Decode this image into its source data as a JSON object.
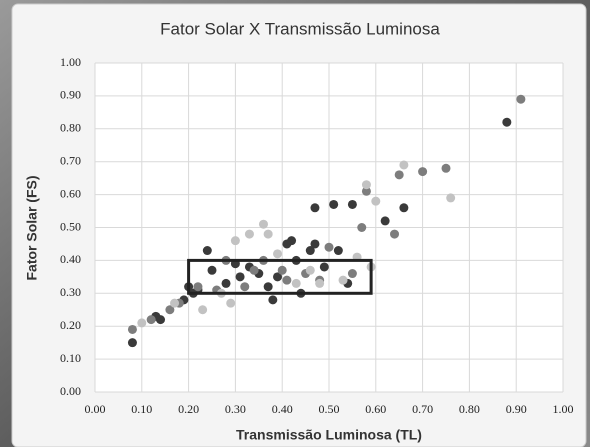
{
  "chart_data": {
    "type": "scatter",
    "title": "Fator Solar X Transmissão Luminosa",
    "x_label": "Transmissão Luminosa (TL)",
    "y_label": "Fator Solar (FS)",
    "xlim": [
      0,
      1
    ],
    "ylim": [
      0,
      1
    ],
    "xticks": [
      {
        "value": 0,
        "label": "0.00"
      },
      {
        "value": 0.1,
        "label": "0.10"
      },
      {
        "value": 0.2,
        "label": "0.20"
      },
      {
        "value": 0.3,
        "label": "0.30"
      },
      {
        "value": 0.4,
        "label": "0.40"
      },
      {
        "value": 0.5,
        "label": "0.50"
      },
      {
        "value": 0.6,
        "label": "0.60"
      },
      {
        "value": 0.7,
        "label": "0.70"
      },
      {
        "value": 0.8,
        "label": "0.80"
      },
      {
        "value": 0.9,
        "label": "0.90"
      },
      {
        "value": 1,
        "label": "1.00"
      }
    ],
    "yticks": [
      {
        "value": 0,
        "label": "0.00"
      },
      {
        "value": 0.1,
        "label": "0.10"
      },
      {
        "value": 0.2,
        "label": "0.20"
      },
      {
        "value": 0.3,
        "label": "0.30"
      },
      {
        "value": 0.4,
        "label": "0.40"
      },
      {
        "value": 0.5,
        "label": "0.50"
      },
      {
        "value": 0.6,
        "label": "0.60"
      },
      {
        "value": 0.7,
        "label": "0.70"
      },
      {
        "value": 0.8,
        "label": "0.80"
      },
      {
        "value": 0.9,
        "label": "0.90"
      },
      {
        "value": 1,
        "label": "1.00"
      }
    ],
    "grid": true,
    "highlight": {
      "x": [
        0.2,
        0.59
      ],
      "y": [
        0.3,
        0.4
      ]
    },
    "series": [
      {
        "color": "#3a3a3a",
        "x": [
          0.08,
          0.13,
          0.14,
          0.19,
          0.2,
          0.21,
          0.22,
          0.24,
          0.25,
          0.28,
          0.3,
          0.31,
          0.33,
          0.35,
          0.37,
          0.38,
          0.39,
          0.41,
          0.42,
          0.43,
          0.44,
          0.46,
          0.47,
          0.47,
          0.49,
          0.51,
          0.52,
          0.54,
          0.55,
          0.62,
          0.66,
          0.88
        ],
        "values": [
          0.15,
          0.23,
          0.22,
          0.28,
          0.32,
          0.3,
          0.31,
          0.43,
          0.37,
          0.33,
          0.39,
          0.35,
          0.38,
          0.36,
          0.32,
          0.28,
          0.35,
          0.45,
          0.46,
          0.4,
          0.3,
          0.43,
          0.45,
          0.56,
          0.38,
          0.57,
          0.43,
          0.33,
          0.57,
          0.52,
          0.56,
          0.82
        ]
      },
      {
        "color": "#7d7d7d",
        "x": [
          0.08,
          0.12,
          0.16,
          0.18,
          0.22,
          0.26,
          0.28,
          0.32,
          0.34,
          0.36,
          0.4,
          0.41,
          0.45,
          0.48,
          0.5,
          0.55,
          0.57,
          0.58,
          0.65,
          0.7,
          0.75,
          0.91,
          0.64
        ],
        "values": [
          0.19,
          0.22,
          0.25,
          0.27,
          0.32,
          0.31,
          0.4,
          0.32,
          0.37,
          0.4,
          0.37,
          0.34,
          0.36,
          0.34,
          0.44,
          0.36,
          0.5,
          0.61,
          0.66,
          0.67,
          0.68,
          0.89,
          0.48
        ]
      },
      {
        "color": "#c2c2c2",
        "x": [
          0.1,
          0.17,
          0.23,
          0.27,
          0.3,
          0.33,
          0.36,
          0.37,
          0.39,
          0.43,
          0.46,
          0.48,
          0.53,
          0.56,
          0.58,
          0.6,
          0.66,
          0.76,
          0.59,
          0.29
        ],
        "values": [
          0.21,
          0.27,
          0.25,
          0.3,
          0.46,
          0.48,
          0.51,
          0.48,
          0.42,
          0.33,
          0.37,
          0.33,
          0.34,
          0.41,
          0.63,
          0.58,
          0.69,
          0.59,
          0.38,
          0.27
        ]
      }
    ]
  }
}
